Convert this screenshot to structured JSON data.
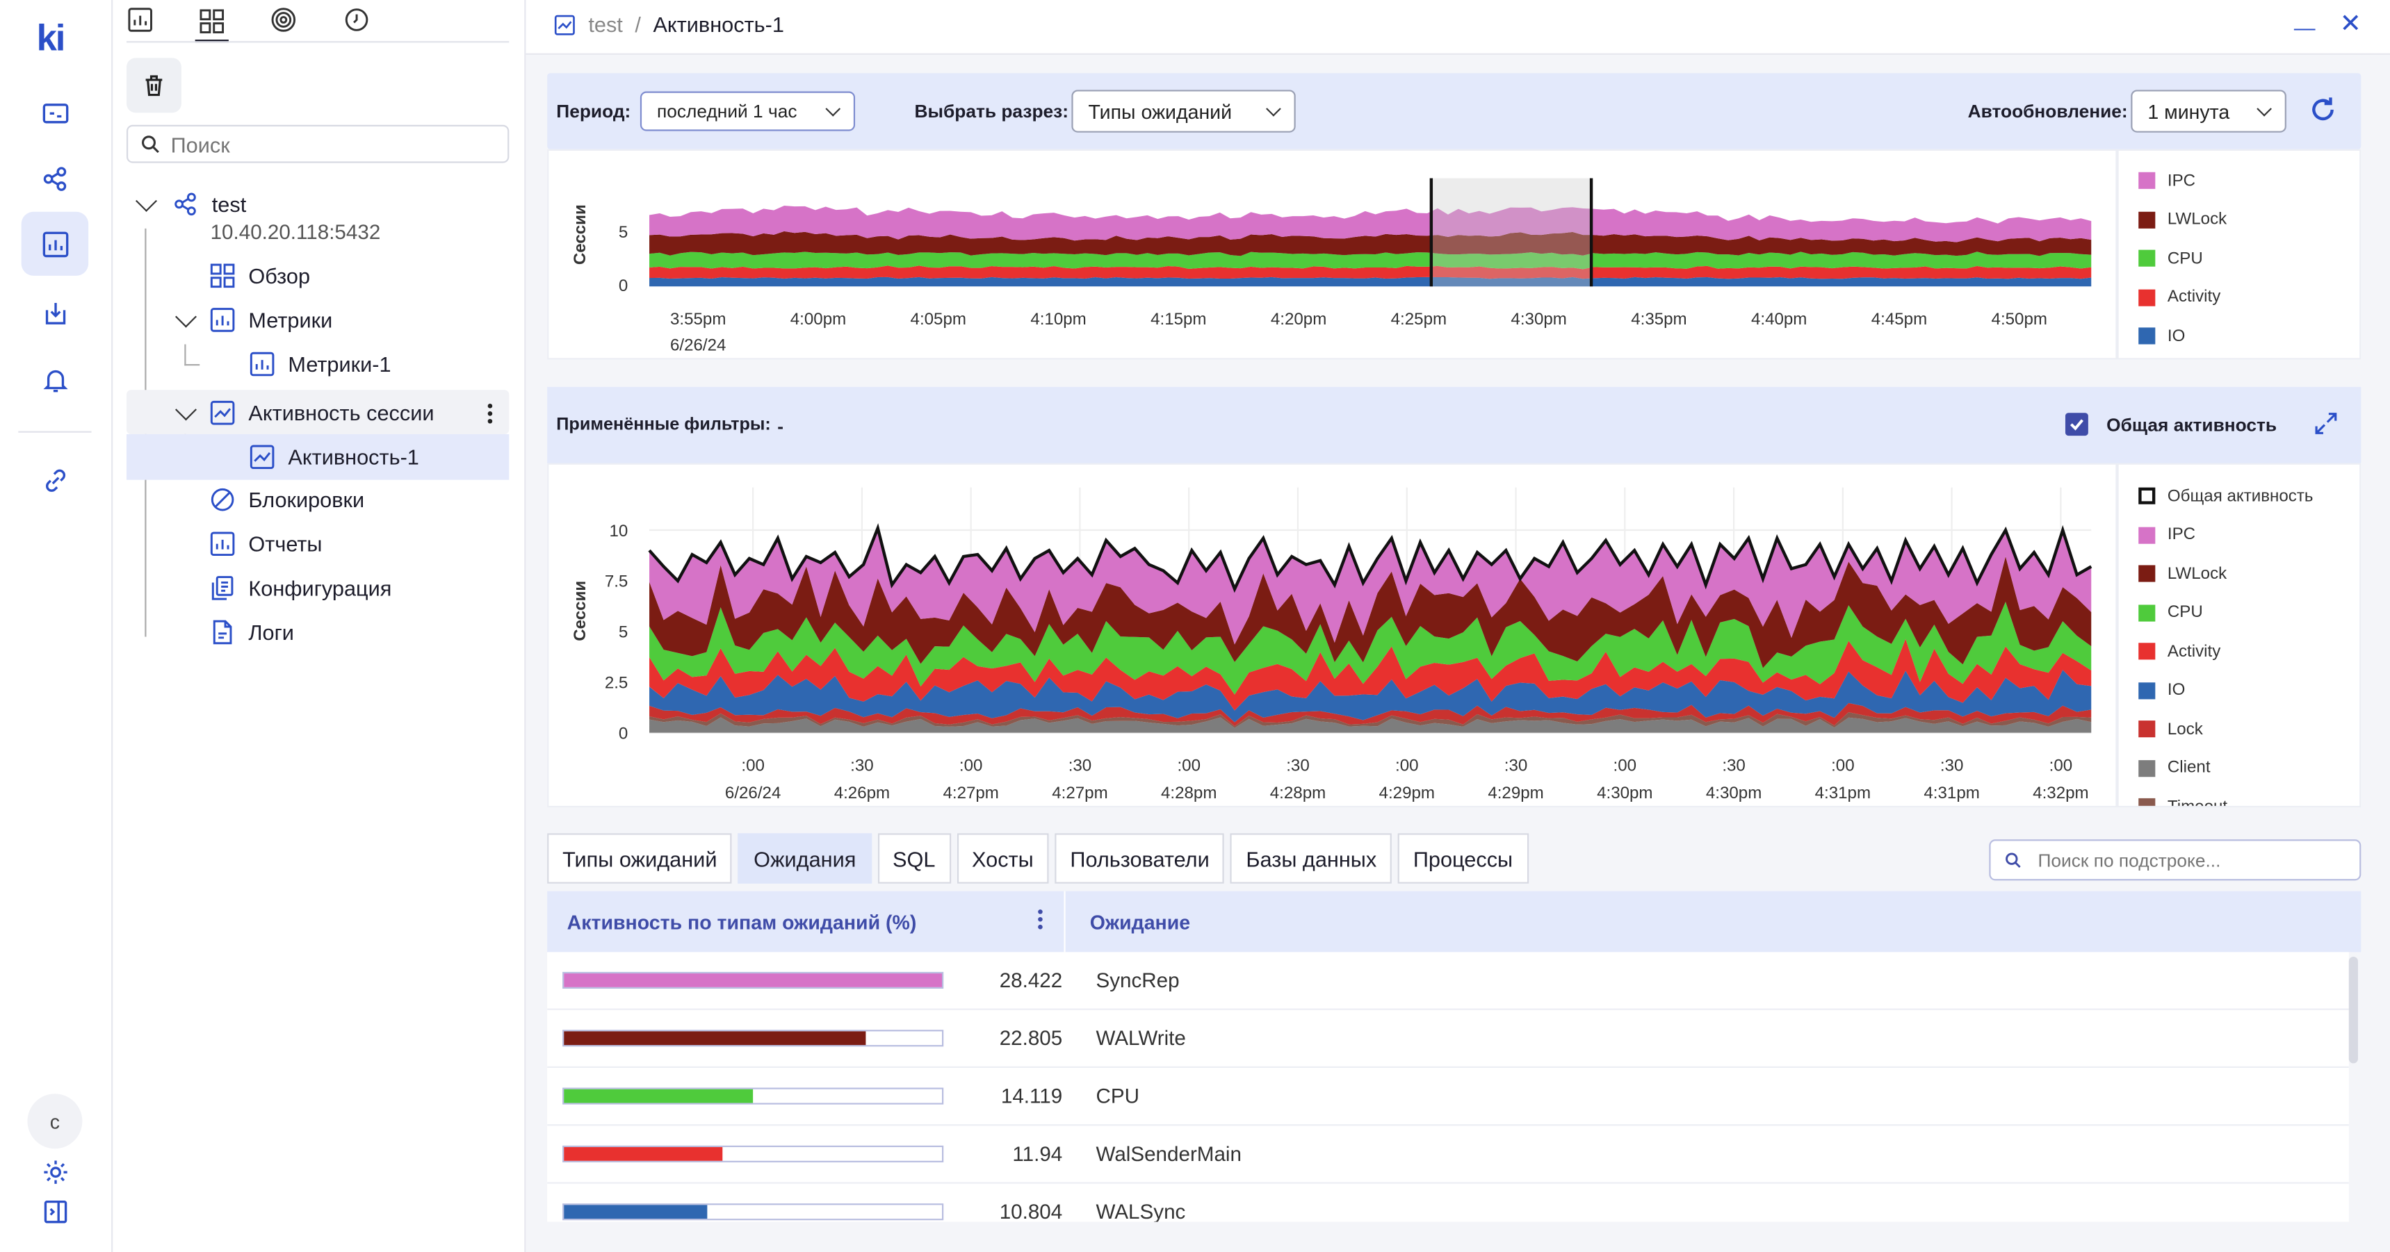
{
  "app": {
    "logo": "ki"
  },
  "rail": {
    "items": [
      "monitor-icon",
      "share-icon",
      "chart-icon",
      "download-icon",
      "bell-icon",
      "link-icon"
    ],
    "avatar": "с"
  },
  "tree": {
    "search_placeholder": "Поиск",
    "root": {
      "name": "test",
      "address": "10.40.20.118:5432"
    },
    "items": [
      {
        "label": "Обзор"
      },
      {
        "label": "Метрики"
      },
      {
        "label": "Метрики-1"
      },
      {
        "label": "Активность сессии"
      },
      {
        "label": "Активность-1"
      },
      {
        "label": "Блокировки"
      },
      {
        "label": "Отчеты"
      },
      {
        "label": "Конфигурация"
      },
      {
        "label": "Логи"
      }
    ]
  },
  "breadcrumb": {
    "parent": "test",
    "sep": "/",
    "current": "Активность-1"
  },
  "toolbar": {
    "period_label": "Период:",
    "period_value": "последний 1 час",
    "slice_label": "Выбрать разрез:",
    "slice_value": "Типы ожиданий",
    "auto_label": "Автообновление:",
    "auto_value": "1 минута"
  },
  "filters": {
    "label": "Применённые фильтры:",
    "value": "-",
    "total_label": "Общая активность"
  },
  "colors": {
    "IPC": "#d673c7",
    "LWLock": "#7b1c13",
    "CPU": "#4fcb3c",
    "Activity": "#e8312f",
    "IO": "#2f67b1",
    "Lock": "#c9322f",
    "Client": "#7d7d7d",
    "Timeout": "#8a5a4e",
    "accent": "#2b4fc8"
  },
  "chart_data": [
    {
      "type": "area",
      "ylabel": "Сессии",
      "ylim": [
        0,
        8.5
      ],
      "yticks": [
        "5",
        "0"
      ],
      "xticks": [
        "3:55pm",
        "4:00pm",
        "4:05pm",
        "4:10pm",
        "4:15pm",
        "4:20pm",
        "4:25pm",
        "4:30pm",
        "4:35pm",
        "4:40pm",
        "4:45pm",
        "4:50pm"
      ],
      "xdate": "6/26/24",
      "legend": [
        "IPC",
        "LWLock",
        "CPU",
        "Activity",
        "IO"
      ],
      "selection": [
        "4:25pm",
        "4:32pm"
      ],
      "series_approx": [
        {
          "name": "IO",
          "values": [
            0.8,
            0.8,
            0.8,
            0.8,
            0.8,
            0.8,
            0.8,
            0.8,
            0.8,
            0.8,
            0.8,
            0.8
          ]
        },
        {
          "name": "Activity",
          "values": [
            1.0,
            1.0,
            1.0,
            1.0,
            1.0,
            1.0,
            1.0,
            1.0,
            1.0,
            1.0,
            1.0,
            1.0
          ]
        },
        {
          "name": "CPU",
          "values": [
            1.3,
            1.4,
            1.3,
            1.3,
            1.3,
            1.3,
            1.3,
            1.4,
            1.3,
            1.3,
            1.3,
            1.3
          ]
        },
        {
          "name": "LWLock",
          "values": [
            1.6,
            1.9,
            1.6,
            1.4,
            1.6,
            1.6,
            1.7,
            1.9,
            1.5,
            1.4,
            1.4,
            1.4
          ]
        },
        {
          "name": "IPC",
          "values": [
            2.0,
            2.3,
            2.4,
            2.2,
            2.0,
            2.0,
            2.3,
            2.4,
            2.1,
            1.8,
            1.8,
            1.9
          ]
        }
      ]
    },
    {
      "type": "area",
      "ylabel": "Сессии",
      "ylim": [
        0,
        10
      ],
      "yticks": [
        "10",
        "7.5",
        "5",
        "2.5",
        "0"
      ],
      "xticks": [
        ":00",
        ":30",
        ":00",
        ":30",
        ":00",
        ":30",
        ":00",
        ":30",
        ":00",
        ":30",
        ":00",
        ":30",
        ":00"
      ],
      "xticks2": [
        "6/26/24",
        "4:26pm",
        "4:27pm",
        "4:27pm",
        "4:28pm",
        "4:28pm",
        "4:29pm",
        "4:29pm",
        "4:30pm",
        "4:30pm",
        "4:31pm",
        "4:31pm",
        "4:32pm"
      ],
      "legend": [
        "Общая активность",
        "IPC",
        "LWLock",
        "CPU",
        "Activity",
        "IO",
        "Lock",
        "Client",
        "Timeout"
      ],
      "total": [
        9,
        8.2,
        7.5,
        8.8,
        8.4,
        9.4,
        7.8,
        8.6,
        8.3,
        9.6,
        7.6,
        8.7,
        8.4,
        8.9,
        7.7,
        8.3,
        10.1,
        7.3,
        8.3,
        7.9,
        8.7,
        7.4,
        8.7,
        8.8,
        8.0,
        9.1,
        7.6,
        8.6,
        9.0,
        7.9,
        8.6,
        7.8,
        9.5,
        8.7,
        9.1,
        8.3,
        8.0,
        7.4,
        9.0,
        8.0,
        8.9,
        7.1,
        8.6,
        9.6,
        7.8,
        8.7,
        8.3,
        8.5,
        7.3,
        9.2,
        7.4,
        8.6,
        9.6,
        7.5,
        9.4,
        7.9,
        9.0,
        7.6,
        8.9,
        8.3,
        9.0,
        7.6,
        8.6,
        8.2,
        9.4,
        7.9,
        8.6,
        9.5,
        8.3,
        9.0,
        7.8,
        9.3,
        8.2,
        9.3,
        7.3,
        9.3,
        8.6,
        9.6,
        7.6,
        9.6,
        8.1,
        8.3,
        9.3,
        7.7,
        9.3,
        8.1,
        9.1,
        7.5,
        9.5,
        8.1,
        9.2,
        7.8,
        9.1,
        7.4,
        8.8,
        10,
        8.1,
        8.9,
        7.8,
        10,
        7.8,
        8.2
      ]
    }
  ],
  "tabs": [
    "Типы ожиданий",
    "Ожидания",
    "SQL",
    "Хосты",
    "Пользователи",
    "Базы данных",
    "Процессы"
  ],
  "table_search_placeholder": "Поиск по подстроке...",
  "table": {
    "col1": "Активность по типам ожиданий (%)",
    "col2": "Ожидание",
    "rows": [
      {
        "value": "28.422",
        "pct": 1.0,
        "name": "SyncRep",
        "color": "#d673c7"
      },
      {
        "value": "22.805",
        "pct": 0.8,
        "name": "WALWrite",
        "color": "#7b1c13"
      },
      {
        "value": "14.119",
        "pct": 0.5,
        "name": "CPU",
        "color": "#4fcb3c"
      },
      {
        "value": "11.94",
        "pct": 0.42,
        "name": "WalSenderMain",
        "color": "#e8312f"
      },
      {
        "value": "10.804",
        "pct": 0.38,
        "name": "WALSync",
        "color": "#2f67b1"
      }
    ]
  }
}
